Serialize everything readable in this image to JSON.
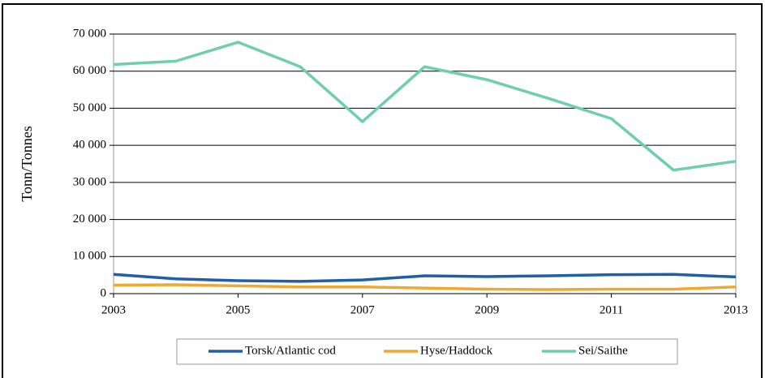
{
  "chart_data": {
    "type": "line",
    "y_label": "Tonn/Tonnes",
    "x": [
      2003,
      2004,
      2005,
      2006,
      2007,
      2008,
      2009,
      2010,
      2011,
      2012,
      2013
    ],
    "xlim": [
      2003,
      2013
    ],
    "xticks": [
      2003,
      2005,
      2007,
      2009,
      2011,
      2013
    ],
    "ylim": [
      0,
      70000
    ],
    "yticks": [
      0,
      {
        "value": 10000,
        "label": "10 000"
      },
      {
        "value": 20000,
        "label": "20 000"
      },
      {
        "value": 30000,
        "label": "30 000"
      },
      {
        "value": 40000,
        "label": "40 000"
      },
      {
        "value": 50000,
        "label": "50 000"
      },
      {
        "value": 60000,
        "label": "60 000"
      },
      {
        "value": 70000,
        "label": "70 000"
      }
    ],
    "grid": true,
    "legend": "bottom",
    "series": [
      {
        "name": "Torsk/Atlantic cod",
        "color": "#1f5ea8",
        "values": [
          5200,
          4000,
          3500,
          3300,
          3700,
          4800,
          4600,
          4800,
          5100,
          5200,
          4500
        ]
      },
      {
        "name": "Hyse/Haddock",
        "color": "#f0a830",
        "values": [
          2300,
          2400,
          2100,
          1800,
          1800,
          1500,
          1200,
          1100,
          1200,
          1200,
          1800
        ]
      },
      {
        "name": "Sei/Saithe",
        "color": "#6fcfaa",
        "values": [
          61800,
          62700,
          67800,
          61200,
          46400,
          61200,
          57700,
          52600,
          47200,
          33300,
          35700
        ]
      }
    ]
  }
}
